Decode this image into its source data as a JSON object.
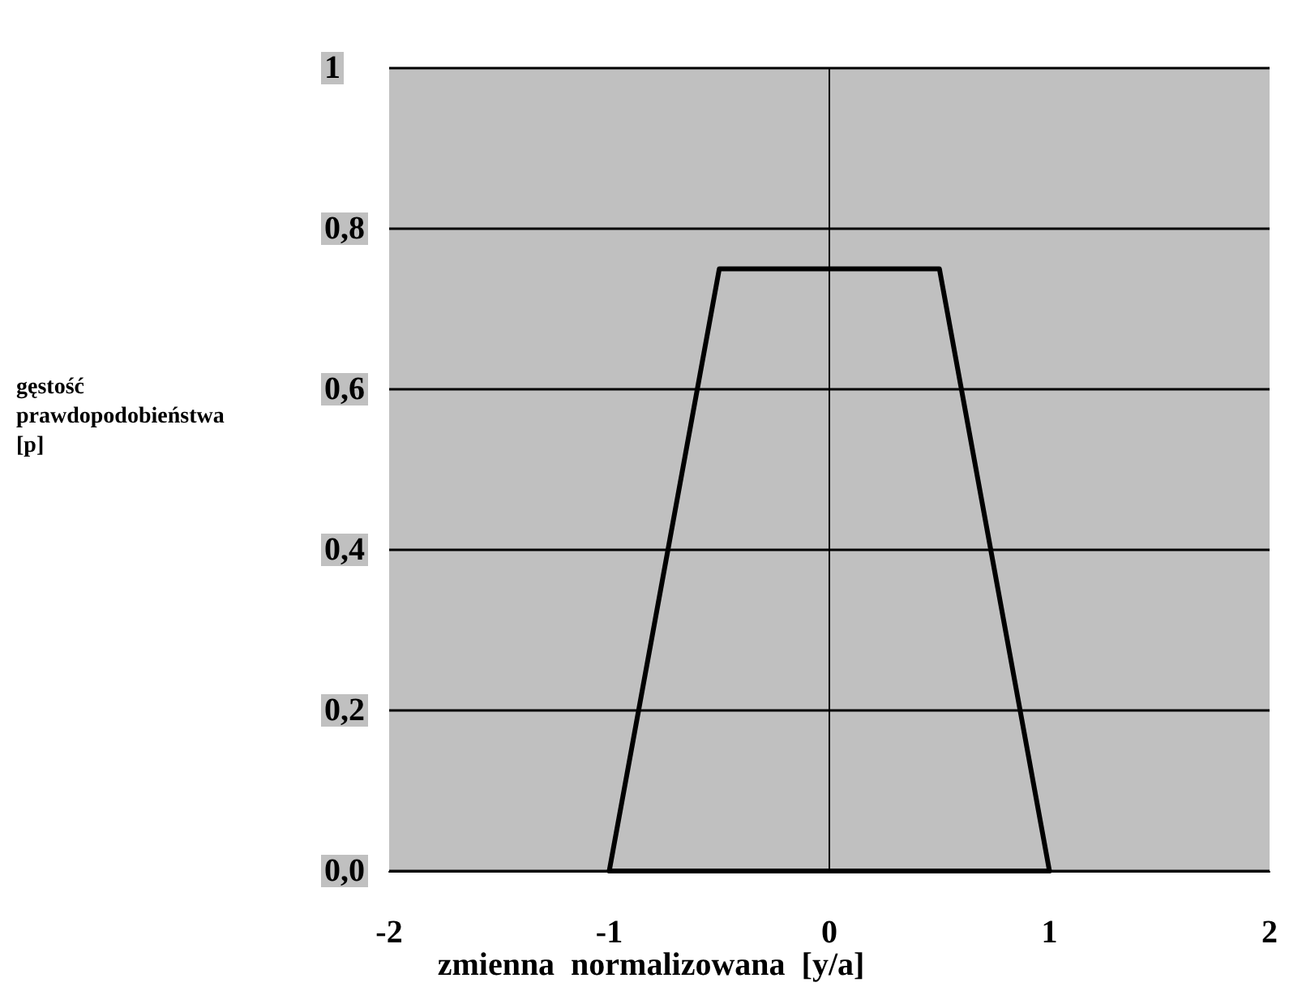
{
  "chart_data": {
    "type": "line",
    "xlabel": "zmienna  normalizowana  [y/a]",
    "ylabel": "gęstość\nprawdopodobieństwa\n[p]",
    "series": [
      {
        "color": "#000000",
        "x": [
          -1,
          -0.5,
          0.5,
          1
        ],
        "values": [
          0,
          0.75,
          0.75,
          0
        ]
      },
      {
        "color": "#000000",
        "x": [
          -1,
          1
        ],
        "values": [
          0,
          0
        ]
      }
    ],
    "xlim": [
      -2,
      2
    ],
    "xticks": [
      -2,
      -1,
      0,
      1,
      2
    ],
    "ylim": [
      0,
      1
    ],
    "yticks": [
      {
        "value": 0,
        "label": "0,0"
      },
      {
        "value": 0.2,
        "label": "0,2"
      },
      {
        "value": 0.4,
        "label": "0,4"
      },
      {
        "value": 0.6,
        "label": "0,6"
      },
      {
        "value": 0.8,
        "label": "0,8"
      },
      {
        "value": 1,
        "label": "1"
      }
    ],
    "grid": "y",
    "marker": "none",
    "line_style": "solid"
  }
}
